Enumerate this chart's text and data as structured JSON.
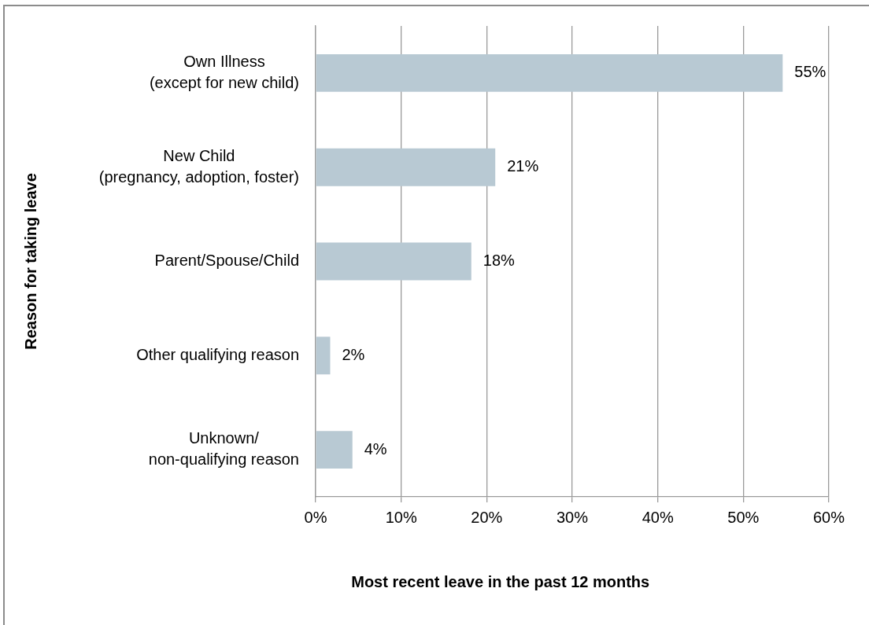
{
  "chart_data": {
    "type": "bar",
    "orientation": "horizontal",
    "categories": [
      "Own Illness\n(except for new child)",
      "New Child\n(pregnancy, adoption, foster)",
      "Parent/Spouse/Child",
      "Other qualifying reason",
      "Unknown/\nnon-qualifying reason"
    ],
    "values": [
      54.6,
      21.0,
      18.2,
      1.7,
      4.3
    ],
    "value_labels": [
      "55%",
      "21%",
      "18%",
      "2%",
      "4%"
    ],
    "color": "#b8c9d3",
    "xlim": [
      0,
      60
    ],
    "xticks": [
      {
        "value": 0,
        "label": "0%"
      },
      {
        "value": 10,
        "label": "10%"
      },
      {
        "value": 20,
        "label": "20%"
      },
      {
        "value": 30,
        "label": "30%"
      },
      {
        "value": 40,
        "label": "40%"
      },
      {
        "value": 50,
        "label": "50%"
      },
      {
        "value": 60,
        "label": "60%"
      }
    ],
    "xlabel": "Most recent leave in the past 12 months",
    "ylabel": "Reason for taking leave",
    "grid": "x"
  }
}
